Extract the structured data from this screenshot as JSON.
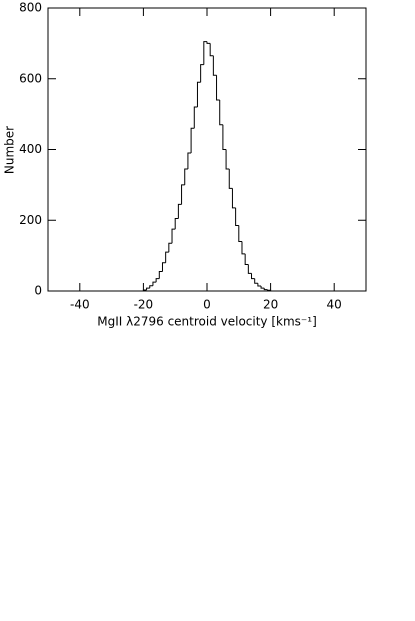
{
  "chart_data": {
    "type": "histogram",
    "xlabel": "MgII λ2796 centroid velocity [kms⁻¹]",
    "ylabel": "Number",
    "bins": [
      -20,
      -19,
      -18,
      -17,
      -16,
      -15,
      -14,
      -13,
      -12,
      -11,
      -10,
      -9,
      -8,
      -7,
      -6,
      -5,
      -4,
      -3,
      -2,
      -1,
      0,
      1,
      2,
      3,
      4,
      5,
      6,
      7,
      8,
      9,
      10,
      11,
      12,
      13,
      14,
      15,
      16,
      17,
      18,
      19,
      20
    ],
    "values": [
      3,
      8,
      15,
      25,
      35,
      55,
      80,
      110,
      135,
      175,
      205,
      245,
      300,
      345,
      390,
      460,
      520,
      590,
      640,
      705,
      700,
      665,
      610,
      540,
      470,
      400,
      345,
      290,
      235,
      185,
      140,
      105,
      75,
      50,
      35,
      22,
      14,
      8,
      4,
      2
    ],
    "color": "#000000",
    "xlim": [
      -50,
      50
    ],
    "xticks": [
      -40,
      -20,
      0,
      20,
      40
    ],
    "ylim": [
      0,
      800
    ],
    "yticks": [
      0,
      200,
      400,
      600,
      800
    ]
  }
}
